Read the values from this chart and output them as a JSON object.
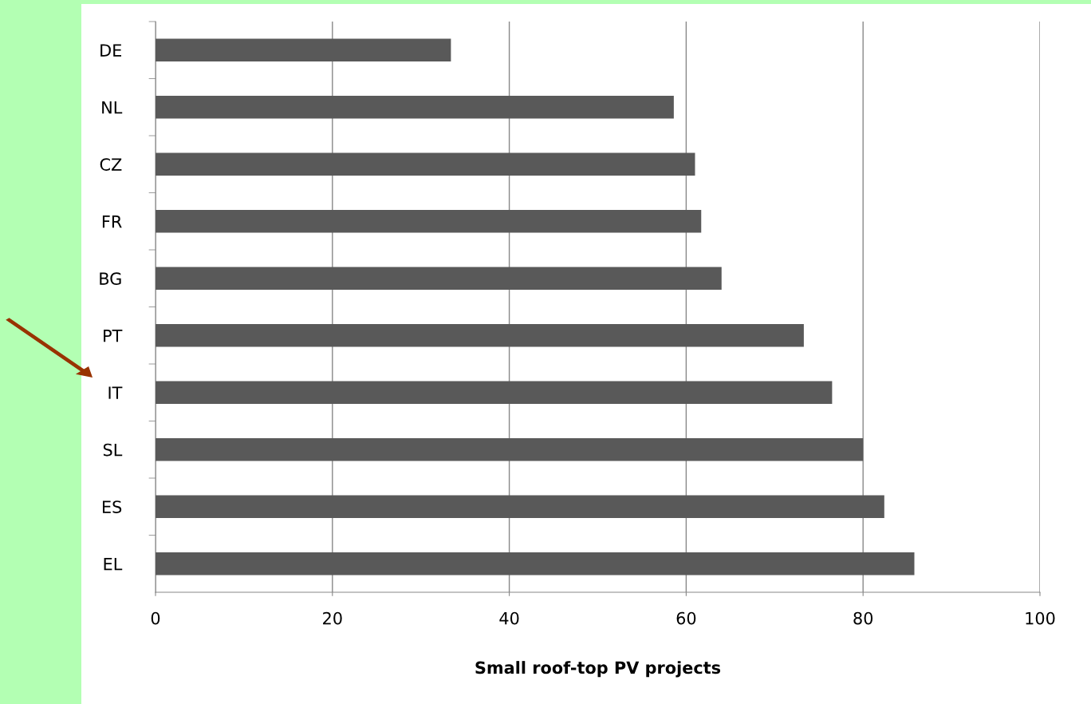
{
  "chart_data": {
    "type": "bar",
    "orientation": "horizontal",
    "xlabel": "Small roof-top PV projects",
    "categories": [
      "DE",
      "NL",
      "CZ",
      "FR",
      "BG",
      "PT",
      "IT",
      "SL",
      "ES",
      "EL"
    ],
    "values": [
      33.4,
      58.6,
      61.0,
      61.7,
      64.0,
      73.3,
      76.5,
      80.0,
      82.4,
      85.8
    ],
    "color": "#595959",
    "xlim": [
      0,
      100
    ],
    "xticks": [
      0,
      20,
      40,
      60,
      80,
      100
    ],
    "grid": "x"
  }
}
